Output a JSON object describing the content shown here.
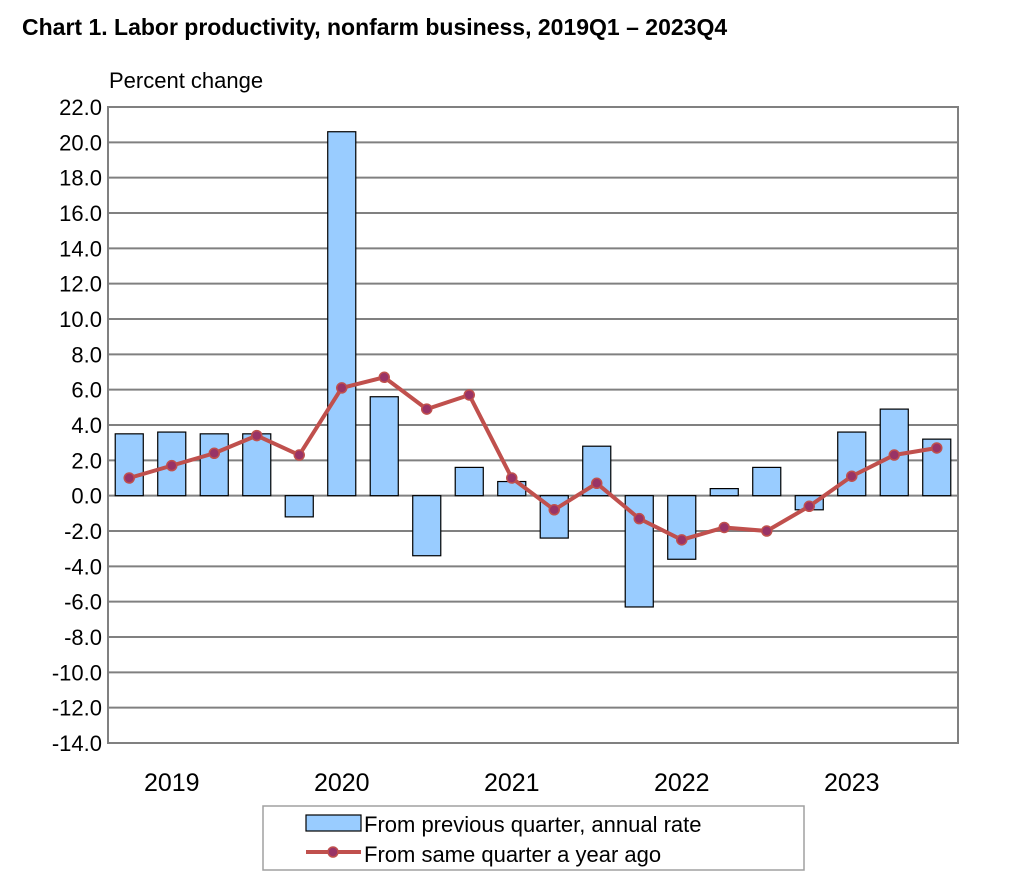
{
  "chart_data": {
    "type": "bar",
    "title": "Chart  1. Labor productivity, nonfarm business, 2019Q1 – 2023Q4",
    "xlabel": "",
    "ylabel": "Percent change",
    "ylim": [
      -14,
      22
    ],
    "yticks": [
      "22.0",
      "20.0",
      "18.0",
      "16.0",
      "14.0",
      "12.0",
      "10.0",
      "8.0",
      "6.0",
      "4.0",
      "2.0",
      "0.0",
      "-2.0",
      "-4.0",
      "-6.0",
      "-8.0",
      "-10.0",
      "-12.0",
      "-14.0"
    ],
    "ytick_values": [
      22,
      20,
      18,
      16,
      14,
      12,
      10,
      8,
      6,
      4,
      2,
      0,
      -2,
      -4,
      -6,
      -8,
      -10,
      -12,
      -14
    ],
    "year_labels": [
      "2019",
      "2020",
      "2021",
      "2022",
      "2023"
    ],
    "categories": [
      "2019Q1",
      "2019Q2",
      "2019Q3",
      "2019Q4",
      "2020Q1",
      "2020Q2",
      "2020Q3",
      "2020Q4",
      "2021Q1",
      "2021Q2",
      "2021Q3",
      "2021Q4",
      "2022Q1",
      "2022Q2",
      "2022Q3",
      "2022Q4",
      "2023Q1",
      "2023Q2",
      "2023Q3",
      "2023Q4"
    ],
    "grid": true,
    "legend_position": "bottom",
    "series": [
      {
        "name": "From previous quarter, annual rate",
        "type": "bar",
        "color": "#99ccff",
        "values": [
          3.5,
          3.6,
          3.5,
          3.5,
          -1.2,
          20.6,
          5.6,
          -3.4,
          1.6,
          0.8,
          -2.4,
          2.8,
          -6.3,
          -3.6,
          0.4,
          1.6,
          -0.8,
          3.6,
          4.9,
          3.2
        ]
      },
      {
        "name": "From same quarter a year ago",
        "type": "line",
        "color": "#c0504d",
        "marker_color": "#993366",
        "values": [
          1.0,
          1.7,
          2.4,
          3.4,
          2.3,
          6.1,
          6.7,
          4.9,
          5.7,
          1.0,
          -0.8,
          0.7,
          -1.3,
          -2.5,
          -1.8,
          -2.0,
          -0.6,
          1.1,
          2.3,
          2.7
        ]
      }
    ]
  }
}
